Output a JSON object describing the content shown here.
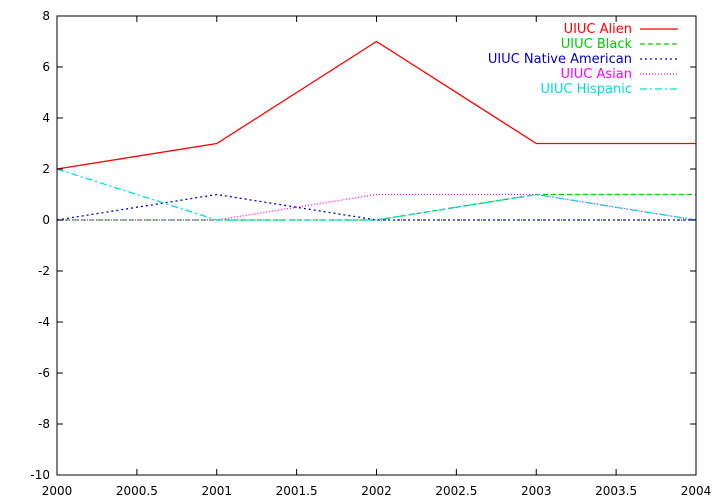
{
  "chart_data": {
    "type": "line",
    "title": "",
    "xlabel": "",
    "ylabel": "",
    "xlim": [
      2000,
      2004
    ],
    "ylim": [
      -10,
      8
    ],
    "x_ticks": [
      2000,
      2000.5,
      2001,
      2001.5,
      2002,
      2002.5,
      2003,
      2003.5,
      2004
    ],
    "x_tick_labels": [
      "2000",
      "2000.5",
      "2001",
      "2001.5",
      "2002",
      "2002.5",
      "2003",
      "2003.5",
      "2004"
    ],
    "y_ticks": [
      -10,
      -8,
      -6,
      -4,
      -2,
      0,
      2,
      4,
      6,
      8
    ],
    "y_tick_labels": [
      "-10",
      "-8",
      "-6",
      "-4",
      "-2",
      "0",
      "2",
      "4",
      "6",
      "8"
    ],
    "grid": false,
    "legend_position": "top-right",
    "x": [
      2000,
      2001,
      2002,
      2003,
      2004
    ],
    "series": [
      {
        "name": "UIUC Alien",
        "values": [
          2,
          3,
          7,
          3,
          3
        ],
        "color": "#ff0000",
        "dash": "solid"
      },
      {
        "name": "UIUC Black",
        "values": [
          0,
          0,
          0,
          1,
          1
        ],
        "color": "#00cc00",
        "dash": "dashed"
      },
      {
        "name": "UIUC Native American",
        "values": [
          0,
          1,
          0,
          0,
          0
        ],
        "color": "#0000cc",
        "dash": "dotted"
      },
      {
        "name": "UIUC Asian",
        "values": [
          0,
          0,
          1,
          1,
          0
        ],
        "color": "#ff00ff",
        "dash": "dotted-fine"
      },
      {
        "name": "UIUC Hispanic",
        "values": [
          2,
          0,
          0,
          1,
          0
        ],
        "color": "#00dddd",
        "dash": "dash-dot"
      }
    ]
  }
}
